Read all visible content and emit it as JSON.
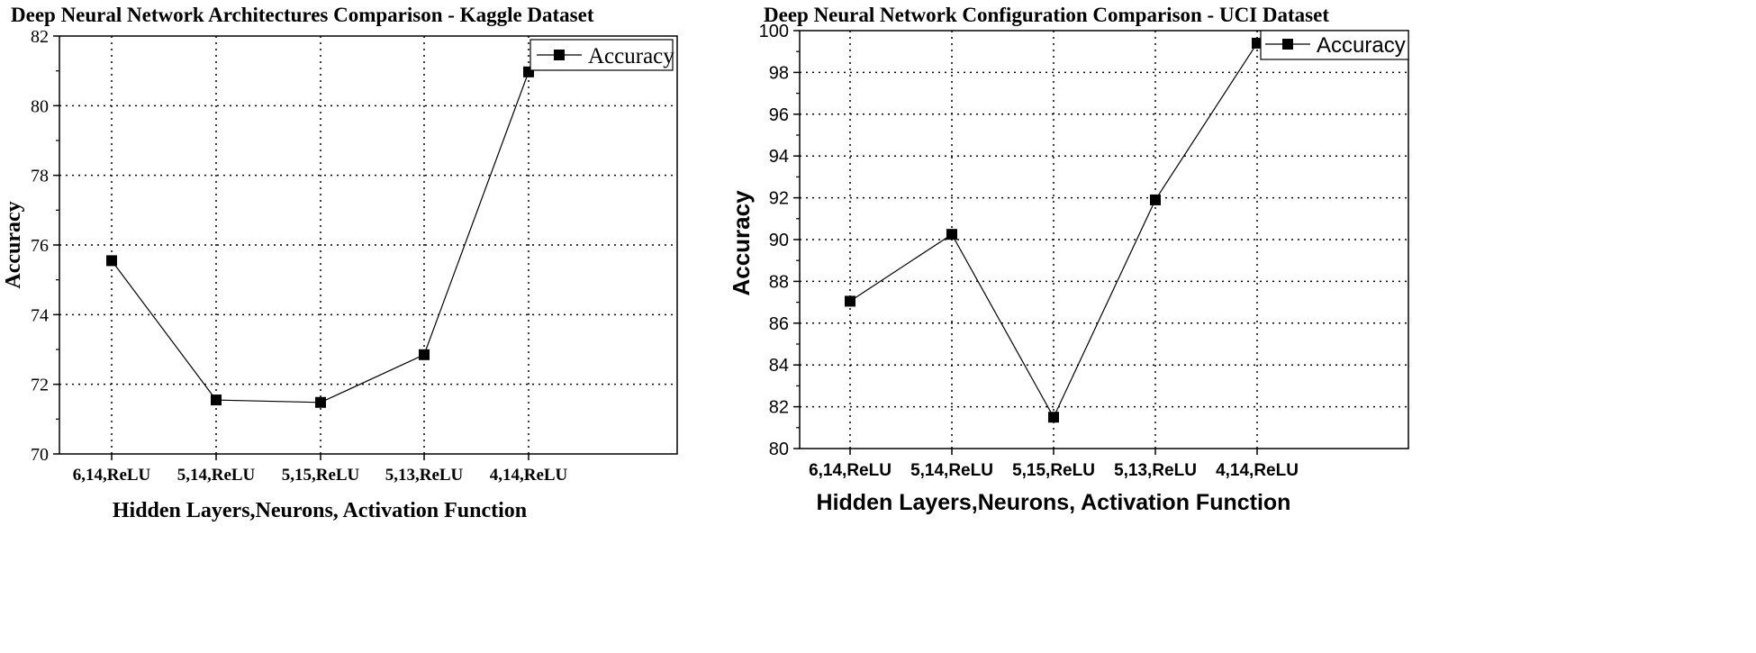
{
  "chart_data": [
    {
      "type": "line",
      "title": "Deep Neural Network Architectures Comparison  - Kaggle Dataset",
      "xlabel": "Hidden Layers,Neurons, Activation Function",
      "ylabel": "Accuracy",
      "categories": [
        "6,14,ReLU",
        "5,14,ReLU",
        "5,15,ReLU",
        "5,13,ReLU",
        "4,14,ReLU"
      ],
      "series": [
        {
          "name": "Accuracy",
          "values": [
            75.55,
            71.55,
            71.48,
            72.85,
            80.97
          ]
        }
      ],
      "ylim": [
        70,
        82
      ],
      "yticks": [
        70,
        72,
        74,
        76,
        78,
        80,
        82
      ],
      "grid": true,
      "legend": "top-right",
      "marker": "square",
      "colors": {
        "line": "#000000",
        "grid": "#000000"
      }
    },
    {
      "type": "line",
      "title": "Deep Neural Network Configuration Comparison - UCI Dataset",
      "xlabel": "Hidden Layers,Neurons, Activation Function",
      "ylabel": "Accuracy",
      "categories": [
        "6,14,ReLU",
        "5,14,ReLU",
        "5,15,ReLU",
        "5,13,ReLU",
        "4,14,ReLU"
      ],
      "series": [
        {
          "name": "Accuracy",
          "values": [
            87.05,
            90.25,
            81.5,
            91.9,
            99.4
          ]
        }
      ],
      "ylim": [
        80,
        100
      ],
      "yticks": [
        80,
        82,
        84,
        86,
        88,
        90,
        92,
        94,
        96,
        98,
        100
      ],
      "grid": true,
      "legend": "top-right",
      "marker": "square",
      "colors": {
        "line": "#000000",
        "grid": "#000000"
      }
    }
  ]
}
